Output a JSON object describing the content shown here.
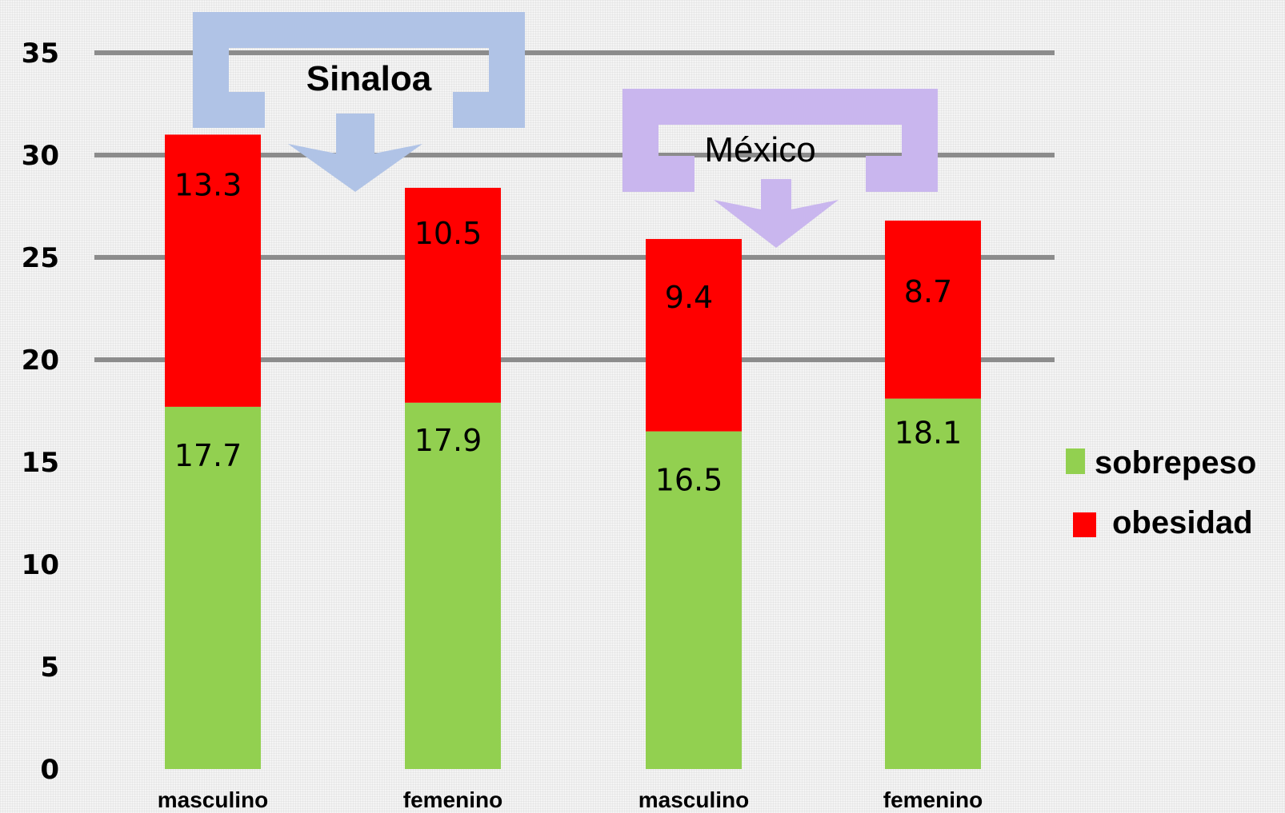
{
  "chart_data": {
    "type": "bar",
    "stacked": true,
    "categories": [
      "masculino",
      "femenino",
      "masculino",
      "femenino"
    ],
    "groups": [
      {
        "label": "Sinaloa",
        "category_indices": [
          0,
          1
        ],
        "color": "#b0c3e6"
      },
      {
        "label": "México",
        "category_indices": [
          2,
          3
        ],
        "color": "#c9b6ee"
      }
    ],
    "series": [
      {
        "name": "sobrepeso",
        "color": "#92d050",
        "values": [
          17.7,
          17.9,
          16.5,
          18.1
        ]
      },
      {
        "name": "obesidad",
        "color": "#ff0000",
        "values": [
          13.3,
          10.5,
          9.4,
          8.7
        ]
      }
    ],
    "ylim": [
      0,
      35
    ],
    "yticks": [
      "0",
      "5",
      "10",
      "15",
      "20",
      "25",
      "30",
      "35"
    ],
    "xlabel": "",
    "ylabel": "",
    "grid": true,
    "legend_position": "right"
  }
}
